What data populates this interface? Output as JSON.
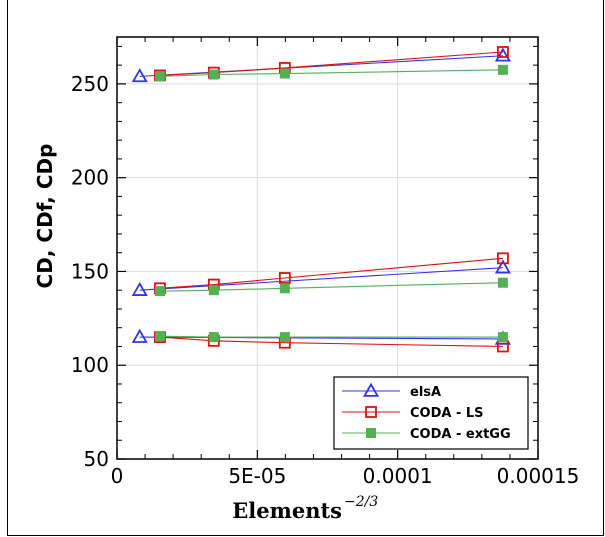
{
  "chart_data": {
    "type": "line",
    "xlabel": "Elements",
    "xlabel_exponent": "−2/3",
    "ylabel": "CD, CDf, CDp",
    "xlim": [
      0,
      0.00015
    ],
    "ylim": [
      50,
      275
    ],
    "x_ticks": [
      0,
      5e-05,
      0.0001,
      0.00015
    ],
    "x_tick_labels": [
      "0",
      "5E-05",
      "0.0001",
      "0.00015"
    ],
    "y_ticks": [
      50,
      100,
      150,
      200,
      250
    ],
    "y_tick_labels": [
      "50",
      "100",
      "150",
      "200",
      "250"
    ],
    "grid": true,
    "legend_position": "bottom-right",
    "series": [
      {
        "name": "elsA",
        "color": "#3333ee",
        "marker": "triangle-open",
        "groups": [
          {
            "x": [
              8.1e-06,
              0.0001375
            ],
            "y": [
              254,
              265
            ]
          },
          {
            "x": [
              8.1e-06,
              0.0001375
            ],
            "y": [
              140,
              152
            ]
          },
          {
            "x": [
              8.1e-06,
              0.0001375
            ],
            "y": [
              115,
              114
            ]
          }
        ]
      },
      {
        "name": "CODA - LS",
        "color": "#dd1111",
        "marker": "square-open",
        "groups": [
          {
            "x": [
              1.53e-05,
              3.45e-05,
              5.98e-05,
              0.0001375
            ],
            "y": [
              254.5,
              256,
              258.5,
              267
            ]
          },
          {
            "x": [
              1.53e-05,
              3.45e-05,
              5.98e-05,
              0.0001375
            ],
            "y": [
              141,
              143,
              146.5,
              157
            ]
          },
          {
            "x": [
              1.53e-05,
              3.45e-05,
              5.98e-05,
              0.0001375
            ],
            "y": [
              115,
              113,
              112,
              110
            ]
          }
        ]
      },
      {
        "name": "CODA - extGG",
        "color": "#55b055",
        "marker": "square-filled",
        "groups": [
          {
            "x": [
              1.53e-05,
              3.45e-05,
              5.98e-05,
              0.0001375
            ],
            "y": [
              254,
              255,
              255.5,
              257.5
            ]
          },
          {
            "x": [
              1.53e-05,
              3.45e-05,
              5.98e-05,
              0.0001375
            ],
            "y": [
              139.5,
              140,
              141,
              144
            ]
          },
          {
            "x": [
              1.53e-05,
              3.45e-05,
              5.98e-05,
              0.0001375
            ],
            "y": [
              115.5,
              115,
              115,
              115
            ]
          }
        ]
      }
    ]
  }
}
